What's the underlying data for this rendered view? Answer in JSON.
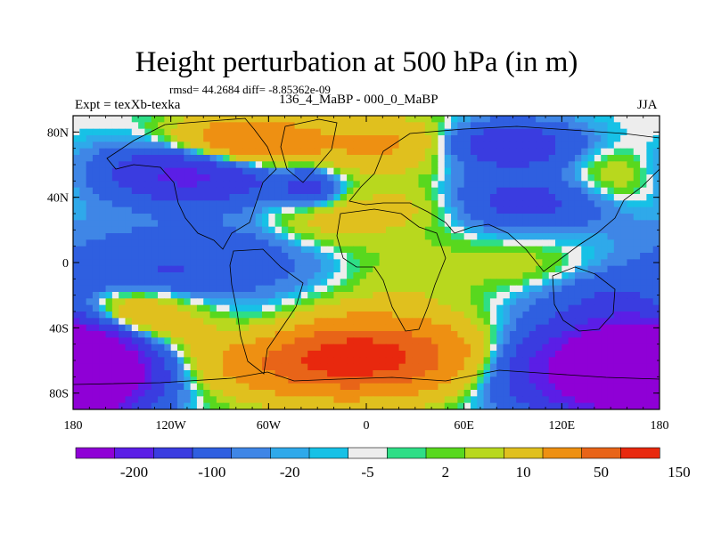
{
  "chart_data": {
    "type": "heatmap",
    "title": "Height perturbation at 500 hPa (in m)",
    "stats_text": "rmsd= 44.2684 diff= -8.85362e-09",
    "left_label": "Expt = texXb-texka",
    "center_label": "136_4_MaBP - 000_0_MaBP",
    "right_label": "JJA",
    "x_range": [
      -180,
      180
    ],
    "y_range": [
      -90,
      90
    ],
    "x_ticks": [
      {
        "value": -180,
        "label": "180"
      },
      {
        "value": -120,
        "label": "120W"
      },
      {
        "value": -60,
        "label": "60W"
      },
      {
        "value": 0,
        "label": "0"
      },
      {
        "value": 60,
        "label": "60E"
      },
      {
        "value": 120,
        "label": "120E"
      },
      {
        "value": 180,
        "label": "180"
      }
    ],
    "y_ticks": [
      {
        "value": 80,
        "label": "80N"
      },
      {
        "value": 40,
        "label": "40N"
      },
      {
        "value": 0,
        "label": "0"
      },
      {
        "value": -40,
        "label": "40S"
      },
      {
        "value": -80,
        "label": "80S"
      }
    ],
    "colorbar": {
      "colors": [
        "#8f00d6",
        "#5b1ee6",
        "#3a3ce0",
        "#2f5fe0",
        "#3f86e6",
        "#2fa9ea",
        "#17c1e6",
        "#ededed",
        "#2ede86",
        "#58d81e",
        "#b8d81e",
        "#e0c01e",
        "#ee9012",
        "#e86418",
        "#e8280e"
      ],
      "labels": [
        "-200",
        "-100",
        "-20",
        "-5",
        "2",
        "10",
        "50",
        "150"
      ]
    },
    "features": [
      {
        "lon": -105,
        "lat": 55,
        "amp": -130,
        "sx": 38,
        "sy": 12
      },
      {
        "lon": -75,
        "lat": 72,
        "amp": 120,
        "sx": 30,
        "sy": 12
      },
      {
        "lon": -25,
        "lat": 25,
        "amp": 35,
        "sx": 28,
        "sy": 12
      },
      {
        "lon": -35,
        "lat": 46,
        "amp": -60,
        "sx": 12,
        "sy": 8
      },
      {
        "lon": 15,
        "lat": 72,
        "amp": 60,
        "sx": 35,
        "sy": 12
      },
      {
        "lon": 30,
        "lat": 35,
        "amp": 25,
        "sx": 25,
        "sy": 10
      },
      {
        "lon": 85,
        "lat": 72,
        "amp": -95,
        "sx": 30,
        "sy": 10
      },
      {
        "lon": 100,
        "lat": 38,
        "amp": -70,
        "sx": 35,
        "sy": 12
      },
      {
        "lon": 150,
        "lat": 60,
        "amp": 15,
        "sx": 20,
        "sy": 10
      },
      {
        "lon": 145,
        "lat": 45,
        "amp": 25,
        "sx": 25,
        "sy": 10
      },
      {
        "lon": -90,
        "lat": 2,
        "amp": -40,
        "sx": 70,
        "sy": 18
      },
      {
        "lon": 20,
        "lat": -5,
        "amp": 25,
        "sx": 45,
        "sy": 18
      },
      {
        "lon": 110,
        "lat": -8,
        "amp": 18,
        "sx": 25,
        "sy": 14
      },
      {
        "lon": 145,
        "lat": -22,
        "amp": -40,
        "sx": 40,
        "sy": 12
      },
      {
        "lon": -150,
        "lat": -35,
        "amp": 90,
        "sx": 28,
        "sy": 14
      },
      {
        "lon": -10,
        "lat": -58,
        "amp": 190,
        "sx": 55,
        "sy": 16
      },
      {
        "lon": 150,
        "lat": -65,
        "amp": -220,
        "sx": 45,
        "sy": 18
      },
      {
        "lon": -180,
        "lat": -65,
        "amp": -200,
        "sx": 30,
        "sy": 18
      },
      {
        "lon": 180,
        "lat": -65,
        "amp": -180,
        "sx": 25,
        "sy": 18
      },
      {
        "lon": -60,
        "lat": -45,
        "amp": -40,
        "sx": 25,
        "sy": 12
      },
      {
        "lon": -140,
        "lat": -8,
        "amp": -25,
        "sx": 35,
        "sy": 10
      }
    ]
  }
}
